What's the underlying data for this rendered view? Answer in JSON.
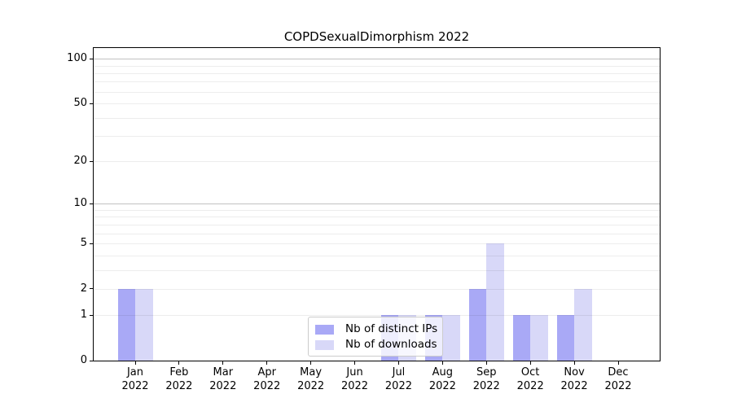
{
  "chart_data": {
    "type": "bar",
    "title": "COPDSexualDimorphism 2022",
    "year_label": "2022",
    "months": [
      "Jan",
      "Feb",
      "Mar",
      "Apr",
      "May",
      "Jun",
      "Jul",
      "Aug",
      "Sep",
      "Oct",
      "Nov",
      "Dec"
    ],
    "series": [
      {
        "name": "Nb of distinct IPs",
        "color": "#a9a9f6",
        "values": [
          2,
          0,
          0,
          0,
          0,
          0,
          1,
          1,
          2,
          1,
          1,
          0
        ]
      },
      {
        "name": "Nb of downloads",
        "color": "#d8d8f8",
        "values": [
          2,
          0,
          0,
          0,
          0,
          0,
          1,
          1,
          5,
          1,
          2,
          0
        ]
      }
    ],
    "yscale": "log1p",
    "yticks": [
      0,
      1,
      2,
      5,
      10,
      20,
      50,
      100
    ],
    "ylim": [
      0,
      118
    ],
    "grid": {
      "minor_values": [
        1,
        2,
        3,
        4,
        5,
        6,
        7,
        8,
        9,
        20,
        30,
        40,
        50,
        60,
        70,
        80,
        90
      ],
      "major_values": [
        10,
        100
      ]
    },
    "legend_position": "lower center",
    "frame_color": "#000000",
    "background_color": "#ffffff"
  }
}
